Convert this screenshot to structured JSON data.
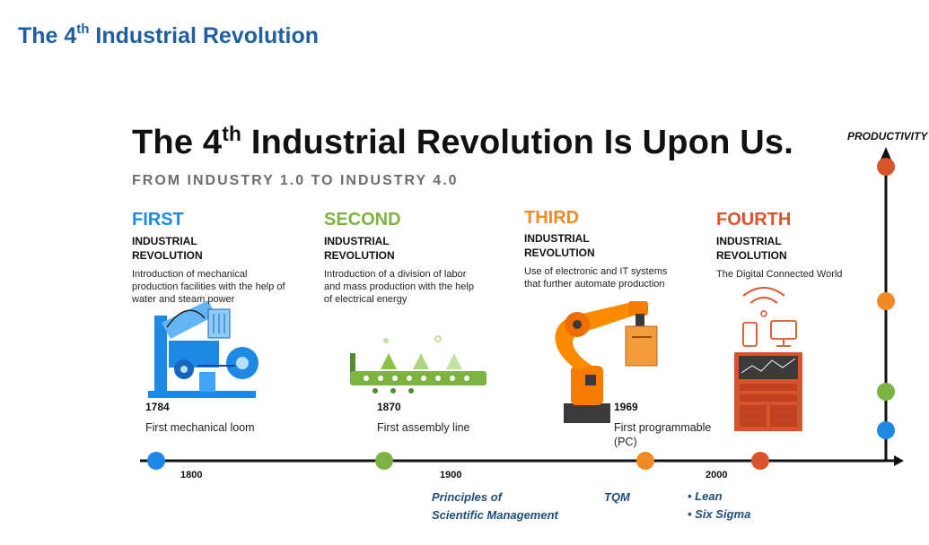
{
  "page_title": {
    "main": "The 4",
    "sup": "th",
    "rest": " Industrial Revolution"
  },
  "infographic": {
    "title": {
      "main": "The 4",
      "sup": "th",
      "rest": " Industrial Revolution Is Upon Us."
    },
    "subtitle": "FROM INDUSTRY 1.0 TO INDUSTRY 4.0",
    "productivity_label": "PRODUCTIVITY"
  },
  "revolutions": [
    {
      "ordinal": "FIRST",
      "kind_line1": "INDUSTRIAL",
      "kind_line2": "REVOLUTION",
      "description": "Introduction of mechanical production facilities with the help of water and steam power",
      "year": "1784",
      "event": "First mechanical loom",
      "color": "#1e88e5"
    },
    {
      "ordinal": "SECOND",
      "kind_line1": "INDUSTRIAL",
      "kind_line2": "REVOLUTION",
      "description": "Introduction of a division of labor and mass production with the help of electrical energy",
      "year": "1870",
      "event": "First assembly line",
      "color": "#7cb342"
    },
    {
      "ordinal": "THIRD",
      "kind_line1": "INDUSTRIAL",
      "kind_line2": "REVOLUTION",
      "description": "Use of electronic and IT systems that further automate production",
      "year": "1969",
      "event": "First programmable (PC)",
      "color": "#f08a24"
    },
    {
      "ordinal": "FOURTH",
      "kind_line1": "INDUSTRIAL",
      "kind_line2": "REVOLUTION",
      "description": "The Digital Connected World",
      "year": "",
      "event": "",
      "color": "#d9542c"
    }
  ],
  "axis": {
    "years": [
      "1800",
      "1900",
      "2000"
    ],
    "milestones": {
      "principles_line1": "Principles of",
      "principles_line2": "Scientific Management",
      "tqm": "TQM",
      "lean": "• Lean",
      "six_sigma": "• Six Sigma"
    }
  },
  "colors": {
    "title_blue": "#1f5f9e",
    "milestone_blue": "#1f4e79",
    "axis": "#111111"
  }
}
